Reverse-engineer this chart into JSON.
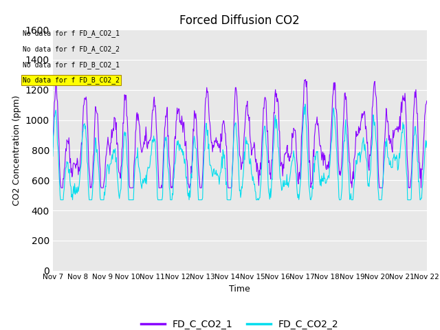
{
  "title": "Forced Diffusion CO2",
  "xlabel": "Time",
  "ylabel": "CO2 Concentration (ppm)",
  "ylim": [
    0,
    1600
  ],
  "legend_labels": [
    "FD_C_CO2_1",
    "FD_C_CO2_2"
  ],
  "line_colors": [
    "#8800ff",
    "#00ddee"
  ],
  "no_data_texts": [
    "No data for f FD_A_CO2_1",
    "No data for f FD_A_CO2_2",
    "No data for f FD_B_CO2_1",
    "No data for f FD_B_CO2_2"
  ],
  "xtick_labels": [
    "Nov 7",
    "Nov 8",
    "Nov 9",
    "Nov 10",
    "Nov 11",
    "Nov 12",
    "Nov 13",
    "Nov 14",
    "Nov 15",
    "Nov 16",
    "Nov 17",
    "Nov 18",
    "Nov 19",
    "Nov 20",
    "Nov 21",
    "Nov 22"
  ],
  "bg_color": "#e8e8e8",
  "fig_color": "#ffffff",
  "linewidth": 0.8,
  "tick_fontsize": 7.5,
  "title_fontsize": 12,
  "label_fontsize": 9
}
